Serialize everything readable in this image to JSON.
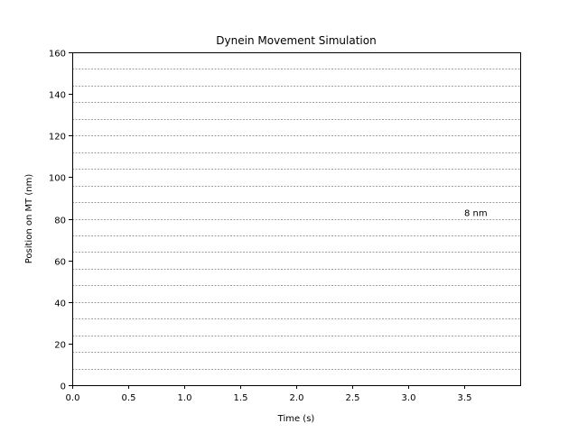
{
  "chart_data": {
    "type": "line",
    "title": "Dynein Movement Simulation",
    "xlabel": "Time (s)",
    "ylabel": "Position on MT (nm)",
    "xlim": [
      0,
      4
    ],
    "ylim": [
      0,
      160
    ],
    "xticks": [
      0,
      0.5,
      1.0,
      1.5,
      2.0,
      2.5,
      3.0,
      3.5
    ],
    "xtick_labels": [
      "0.0",
      "0.5",
      "1.0",
      "1.5",
      "2.0",
      "2.5",
      "3.0",
      "3.5"
    ],
    "yticks": [
      0,
      20,
      40,
      60,
      80,
      100,
      120,
      140,
      160
    ],
    "ytick_labels": [
      "0",
      "20",
      "40",
      "60",
      "80",
      "100",
      "120",
      "140",
      "160"
    ],
    "reference_lines": {
      "orientation": "horizontal",
      "spacing": 8,
      "values": [
        8,
        16,
        24,
        32,
        40,
        48,
        56,
        64,
        72,
        80,
        88,
        96,
        104,
        112,
        120,
        128,
        136,
        144,
        152
      ],
      "style": "dashed",
      "color": "#808080"
    },
    "annotations": [
      {
        "text": "8 nm",
        "x": 3.5,
        "y": 83
      }
    ],
    "series": [],
    "grid": false,
    "legend": "none"
  }
}
